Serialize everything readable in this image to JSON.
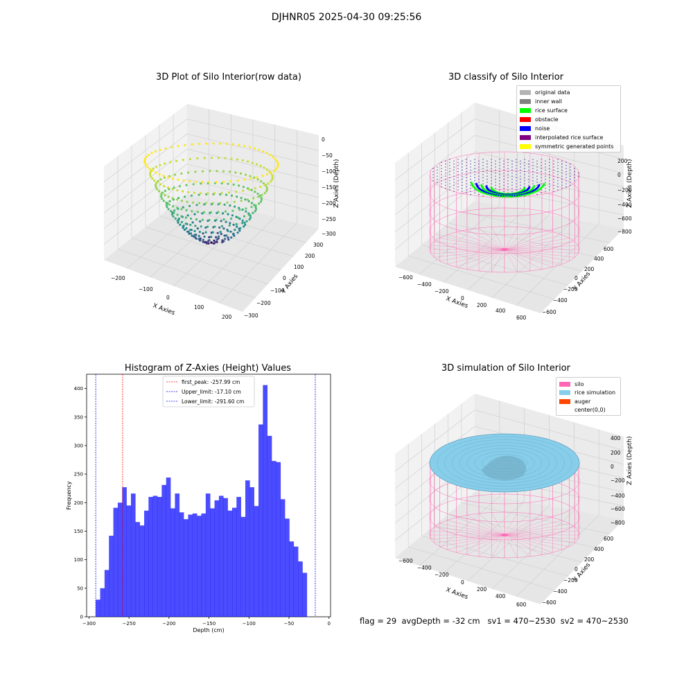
{
  "figure": {
    "suptitle": "DJHNR05 2025-04-30 09:25:56",
    "info_text": "flag = 29  avgDepth = -32 cm   sv1 = 470~2530  sv2 = 470~2530"
  },
  "panels": {
    "raw": {
      "title": "3D Plot of Silo Interior(row data)",
      "xlabel": "X Axies",
      "ylabel": "Y Axies",
      "zlabel": "Z Axies (Depth)",
      "xticks": [
        "−200",
        "−100",
        "0",
        "100",
        "200"
      ],
      "yticks": [
        "300",
        "200",
        "100",
        "0",
        "−100",
        "−200",
        "−300"
      ],
      "zticks": [
        "0",
        "−50",
        "−100",
        "−150",
        "−200",
        "−250",
        "−300"
      ]
    },
    "classify": {
      "title": "3D classify of Silo Interior",
      "xlabel": "X Axies",
      "ylabel": "Y Axies",
      "zlabel": "Z Axies (Depth)",
      "xticks": [
        "−600",
        "−400",
        "−200",
        "0",
        "200",
        "400",
        "600"
      ],
      "yticks": [
        "600",
        "400",
        "200",
        "0",
        "−200",
        "−400",
        "−600"
      ],
      "zticks": [
        "200",
        "0",
        "−200",
        "−400",
        "−600",
        "−800"
      ],
      "legend": [
        {
          "label": "original data",
          "color": "#b3b3b3"
        },
        {
          "label": "inner wall",
          "color": "#808080"
        },
        {
          "label": "rice surface",
          "color": "#00ff00"
        },
        {
          "label": "obstacle",
          "color": "#ff0000"
        },
        {
          "label": "noise",
          "color": "#0000ff"
        },
        {
          "label": "interpolated rice surface",
          "color": "#800080"
        },
        {
          "label": "symmetric generated points",
          "color": "#ffff00"
        }
      ]
    },
    "simulation": {
      "title": "3D simulation of Silo Interior",
      "xlabel": "X Axies",
      "ylabel": "Y Axies",
      "zlabel": "Z Axies (Depth)",
      "xticks": [
        "−600",
        "−400",
        "−200",
        "0",
        "200",
        "400",
        "600"
      ],
      "yticks": [
        "600",
        "400",
        "200",
        "0",
        "−200",
        "−400",
        "−600"
      ],
      "zticks": [
        "400",
        "200",
        "0",
        "−200",
        "−400",
        "−600",
        "−800"
      ],
      "legend": [
        {
          "label": "silo",
          "color": "#ff69b4"
        },
        {
          "label": "rice simulation",
          "color": "#87ceeb"
        },
        {
          "label": "auger",
          "color": "#ff4500"
        },
        {
          "label": "center(0,0)",
          "color": "#ffffff"
        }
      ]
    }
  },
  "chart_data": {
    "type": "bar",
    "title": "Histogram of Z-Axies (Height) Values",
    "xlabel": "Depth (cm)",
    "ylabel": "Frequency",
    "xlim": [
      -303,
      2
    ],
    "ylim": [
      0,
      425
    ],
    "xticks": [
      -300,
      -250,
      -200,
      -150,
      -100,
      -50,
      0
    ],
    "yticks": [
      0,
      50,
      100,
      150,
      200,
      250,
      300,
      350,
      400
    ],
    "bin_width": 5.5,
    "bin_start": -291.6,
    "values": [
      30,
      50,
      82,
      142,
      191,
      200,
      227,
      195,
      216,
      166,
      160,
      186,
      210,
      212,
      210,
      231,
      244,
      190,
      216,
      183,
      171,
      179,
      181,
      177,
      181,
      216,
      190,
      204,
      212,
      208,
      186,
      191,
      210,
      175,
      239,
      227,
      194,
      337,
      406,
      317,
      273,
      271,
      206,
      172,
      132,
      123,
      97,
      77
    ],
    "bar_color": "#0000ff",
    "lines": [
      {
        "label": "first_peak: -257.99 cm",
        "x": -257.99,
        "color": "#ff0000"
      },
      {
        "label": "Upper_limit: -17.10 cm",
        "x": -17.1,
        "color": "#0000ff"
      },
      {
        "label": "Lower_limit: -291.60 cm",
        "x": -291.6,
        "color": "#0000ff"
      }
    ],
    "legend_position": "top-center"
  }
}
